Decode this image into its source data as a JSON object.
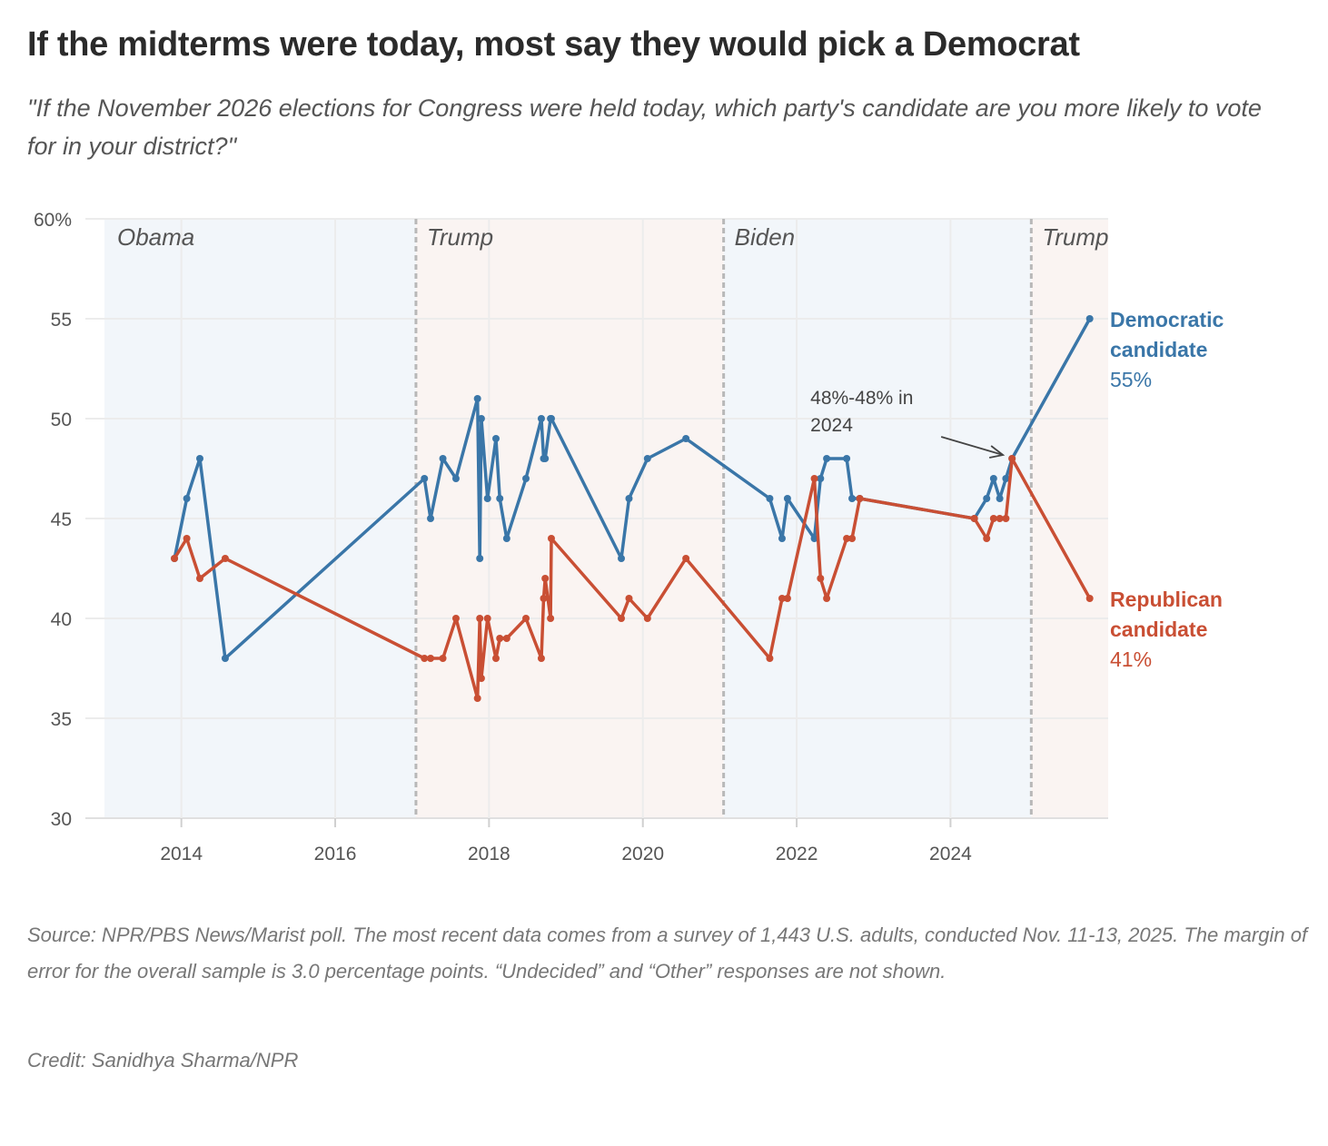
{
  "title": "If the midterms were today, most say they would pick a Democrat",
  "subtitle": "\"If the November 2026 elections for Congress were held today, which party's candidate are you more likely to vote for in your district?\"",
  "footer": {
    "source": "Source: NPR/PBS News/Marist poll. The most recent data comes from a survey of 1,443 U.S. adults, conducted Nov. 11-13, 2025. The margin of error for the overall sample is 3.0 percentage points. “Undecided” and “Other” responses are not shown.",
    "credit": "Credit: Sanidhya Sharma/NPR"
  },
  "chart_data": {
    "type": "line",
    "title": "If the midterms were today, most say they would pick a Democrat",
    "xlabel": "",
    "ylabel": "",
    "xlim": [
      2013.0,
      2026.05
    ],
    "ylim": [
      30,
      60
    ],
    "grid": true,
    "y_ticks": [
      30,
      35,
      40,
      45,
      50,
      55,
      60
    ],
    "y_tick_labels": [
      "30",
      "35",
      "40",
      "45",
      "50",
      "55",
      "60%"
    ],
    "x_ticks": [
      2014,
      2016,
      2018,
      2020,
      2022,
      2024
    ],
    "x_tick_labels": [
      "2014",
      "2016",
      "2018",
      "2020",
      "2022",
      "2024"
    ],
    "eras": [
      {
        "label": "Obama",
        "start": 2013.0,
        "end": 2017.05,
        "color": "#f2f6fa"
      },
      {
        "label": "Trump",
        "start": 2017.05,
        "end": 2021.05,
        "color": "#faf4f2"
      },
      {
        "label": "Biden",
        "start": 2021.05,
        "end": 2025.05,
        "color": "#f2f6fa"
      },
      {
        "label": "Trump",
        "start": 2025.05,
        "end": 2026.05,
        "color": "#faf4f2"
      }
    ],
    "x": [
      2013.91,
      2014.07,
      2014.24,
      2014.57,
      2017.16,
      2017.24,
      2017.4,
      2017.57,
      2017.85,
      2017.88,
      2017.9,
      2017.98,
      2018.09,
      2018.14,
      2018.23,
      2018.48,
      2018.68,
      2018.71,
      2018.73,
      2018.8,
      2018.81,
      2019.72,
      2019.82,
      2020.06,
      2020.56,
      2021.65,
      2021.81,
      2021.88,
      2022.23,
      2022.31,
      2022.39,
      2022.65,
      2022.72,
      2022.82,
      2024.31,
      2024.47,
      2024.56,
      2024.64,
      2024.72,
      2024.8,
      2025.81
    ],
    "series": [
      {
        "name": "Democratic candidate",
        "color": "#3a76a8",
        "label_lines": [
          "Democratic",
          "candidate"
        ],
        "end_label": "55%",
        "values": [
          43,
          46,
          48,
          38,
          47,
          45,
          48,
          47,
          51,
          43,
          50,
          46,
          49,
          46,
          44,
          47,
          50,
          48,
          48,
          50,
          50,
          43,
          46,
          48,
          49,
          46,
          44,
          46,
          44,
          47,
          48,
          48,
          46,
          46,
          45,
          46,
          47,
          46,
          47,
          48,
          55
        ]
      },
      {
        "name": "Republican candidate",
        "color": "#c94f34",
        "label_lines": [
          "Republican",
          "candidate"
        ],
        "end_label": "41%",
        "values": [
          43,
          44,
          42,
          43,
          38,
          38,
          38,
          40,
          36,
          40,
          37,
          40,
          38,
          39,
          39,
          40,
          38,
          41,
          42,
          40,
          44,
          40,
          41,
          40,
          43,
          38,
          41,
          41,
          47,
          42,
          41,
          44,
          44,
          46,
          45,
          44,
          45,
          45,
          45,
          48,
          41
        ]
      }
    ],
    "annotations": [
      {
        "text_lines": [
          "48%-48% in",
          "2024"
        ],
        "x": 2024.8,
        "y": 48
      }
    ]
  }
}
